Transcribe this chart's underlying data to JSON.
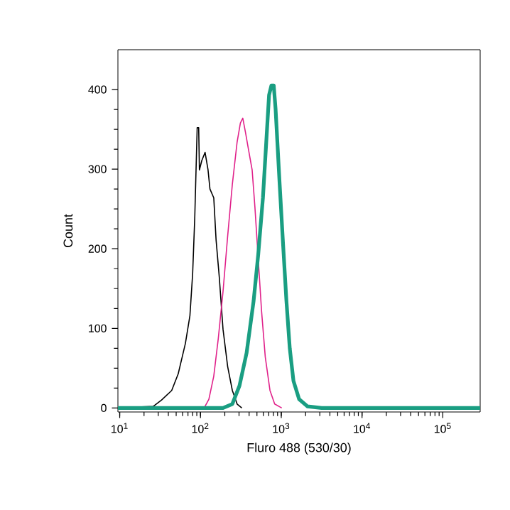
{
  "chart_data": {
    "type": "line",
    "xlabel": "Fluro 488 (530/30)",
    "ylabel": "Count",
    "log": "x",
    "xlim": [
      9.5,
      290000
    ],
    "ylim": [
      -5,
      450
    ],
    "xticks": [
      {
        "value": 10,
        "label": "10$^{1}$"
      },
      {
        "value": 100,
        "label": "10$^{2}$"
      },
      {
        "value": 1000,
        "label": "10$^{3}$"
      },
      {
        "value": 10000,
        "label": "10$^{4}$"
      },
      {
        "value": 100000,
        "label": "10$^{5}$"
      }
    ],
    "yticks": [
      0,
      100,
      200,
      300,
      400
    ],
    "series": [
      {
        "color": "#000000",
        "x": [
          10,
          15,
          26,
          33,
          44,
          53,
          65,
          74,
          80,
          85,
          91,
          95,
          97,
          104,
          114,
          124,
          131,
          146,
          156,
          171,
          190,
          217,
          248,
          284,
          325
        ],
        "values": [
          0,
          1,
          2,
          10,
          22,
          43,
          81,
          116,
          169,
          240,
          352,
          352,
          299,
          311,
          321,
          299,
          275,
          264,
          211,
          164,
          99,
          52,
          22,
          5,
          0
        ]
      },
      {
        "color": "#e0218a",
        "x": [
          111,
          127,
          146,
          166,
          190,
          217,
          248,
          284,
          312,
          334,
          361,
          397,
          436,
          472,
          570,
          634,
          725,
          829,
          1014
        ],
        "values": [
          0,
          11,
          40,
          87,
          146,
          216,
          281,
          334,
          358,
          364,
          346,
          322,
          299,
          252,
          122,
          64,
          22,
          5,
          0
        ]
      },
      {
        "color": "#1a9e82",
        "x": [
          9.5,
          190,
          248,
          304,
          372,
          454,
          519,
          593,
          652,
          706,
          755,
          807,
          851,
          948,
          1054,
          1159,
          1274,
          1416,
          1663,
          2118,
          3162,
          290000
        ],
        "values": [
          0,
          0,
          5,
          28,
          69,
          134,
          193,
          264,
          334,
          393,
          405,
          405,
          375,
          287,
          205,
          134,
          75,
          34,
          11,
          2,
          0,
          0
        ]
      }
    ]
  }
}
